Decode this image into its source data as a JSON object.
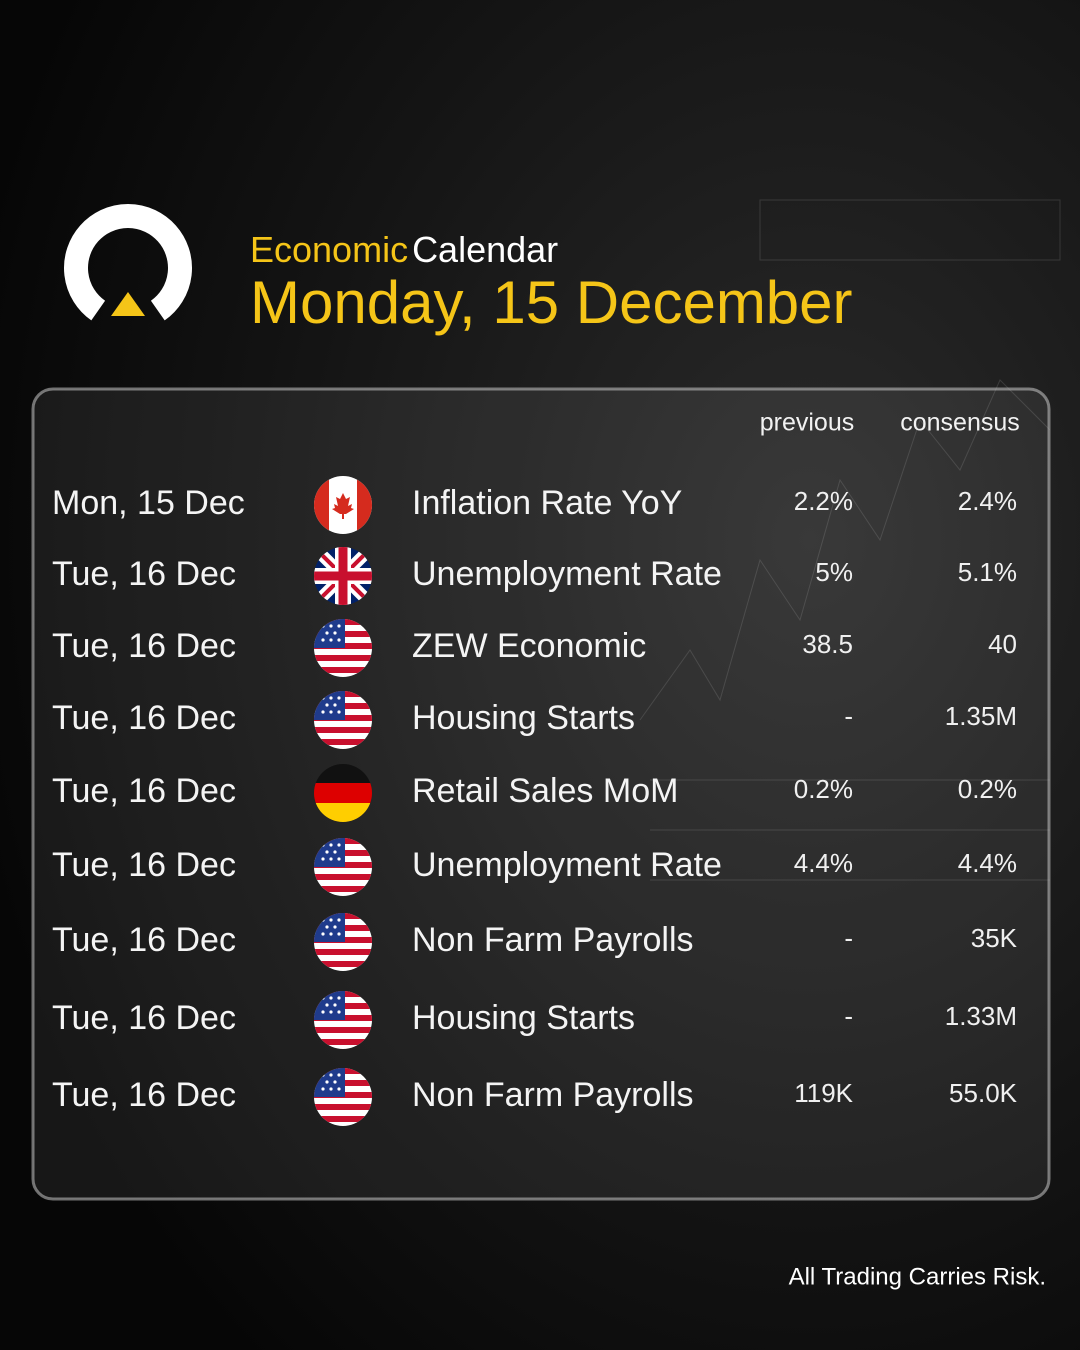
{
  "header": {
    "title_highlight": "Economic",
    "title_rest": "Calendar",
    "date": "Monday, 15 December"
  },
  "table": {
    "columns": [
      "previous",
      "consensus"
    ],
    "rows": [
      [
        "Mon, 15 Dec",
        "Inflation Rate YoY",
        "2.2%",
        "2.4%"
      ],
      [
        "Tue, 16 Dec",
        "Unemployment Rate",
        "5%",
        "5.1%"
      ],
      [
        "Tue, 16 Dec",
        "ZEW Economic",
        "38.5",
        "40"
      ],
      [
        "Tue, 16 Dec",
        "Housing Starts",
        "-",
        "1.35M"
      ],
      [
        "Tue, 16 Dec",
        "Retail Sales MoM",
        "0.2%",
        "0.2%"
      ],
      [
        "Tue, 16 Dec",
        "Unemployment Rate",
        "4.4%",
        "4.4%"
      ],
      [
        "Tue, 16 Dec",
        "Non Farm Payrolls",
        "-",
        "35K"
      ],
      [
        "Tue, 16 Dec",
        "Housing Starts",
        "-",
        "1.33M"
      ],
      [
        "Tue, 16 Dec",
        "Non Farm Payrolls",
        "119K",
        "55.0K"
      ]
    ]
  },
  "footer": "All Trading Carries Risk."
}
